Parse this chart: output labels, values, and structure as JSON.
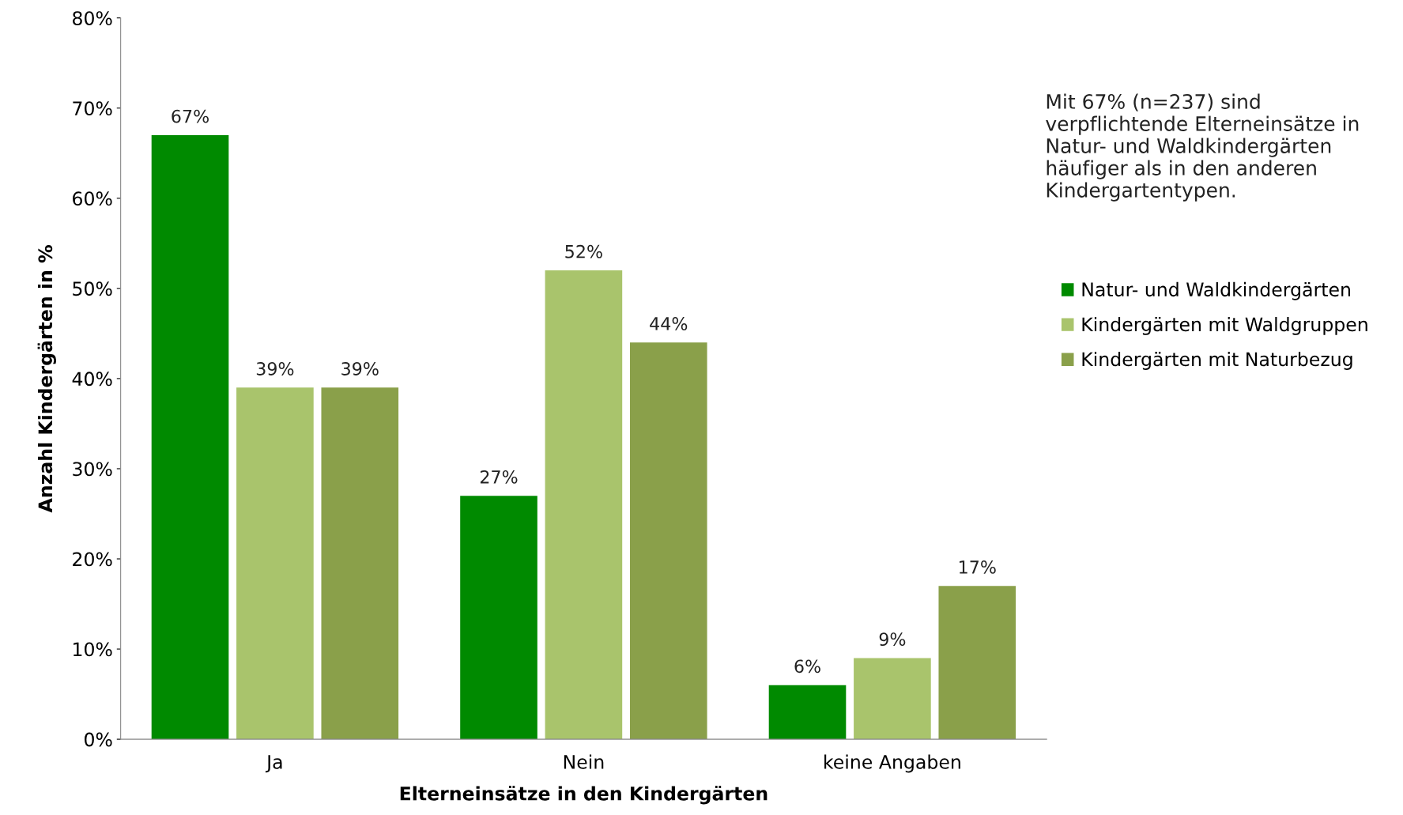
{
  "chart_data": {
    "type": "bar",
    "xlabel": "Elterneinsätze in den Kindergärten",
    "ylabel": "Anzahl Kindergärten in %",
    "categories": [
      "Ja",
      "Nein",
      "keine Angaben"
    ],
    "series": [
      {
        "name": "Natur- und Waldkindergärten",
        "color": "#008a00",
        "values": [
          67,
          27,
          6
        ],
        "value_labels": [
          "67%",
          "27%",
          "6%"
        ]
      },
      {
        "name": "Kindergärten mit Waldgruppen",
        "color": "#a9c46c",
        "values": [
          39,
          52,
          9
        ],
        "value_labels": [
          "39%",
          "52%",
          "9%"
        ]
      },
      {
        "name": "Kindergärten mit Naturbezug",
        "color": "#8aa04a",
        "values": [
          39,
          44,
          17
        ],
        "value_labels": [
          "39%",
          "44%",
          "17%"
        ]
      }
    ],
    "ylim": [
      0,
      80
    ],
    "yticks": [
      {
        "value": 0,
        "label": "0%"
      },
      {
        "value": 10,
        "label": "10%"
      },
      {
        "value": 20,
        "label": "20%"
      },
      {
        "value": 30,
        "label": "30%"
      },
      {
        "value": 40,
        "label": "40%"
      },
      {
        "value": 50,
        "label": "50%"
      },
      {
        "value": 60,
        "label": "60%"
      },
      {
        "value": 70,
        "label": "70%"
      },
      {
        "value": 80,
        "label": "80%"
      }
    ],
    "grid": false,
    "legend": "right",
    "annotations": [
      "Mit 67% (n=237) sind verpflichtende Elterneinsätze in Natur- und Waldkindergärten häufiger als in den anderen Kindergartentypen."
    ]
  }
}
